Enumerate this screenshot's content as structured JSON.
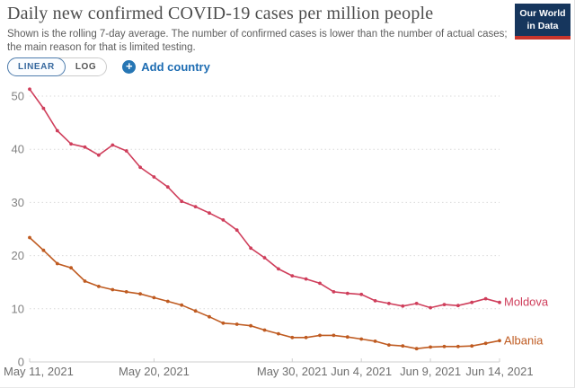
{
  "header": {
    "title": "Daily new confirmed COVID-19 cases per million people",
    "subtitle_line1": "Shown is the rolling 7-day average. The number of confirmed cases is lower than the number of actual cases;",
    "subtitle_line2": "the main reason for that is limited testing.",
    "logo": {
      "line1": "Our World",
      "line2": "in Data"
    }
  },
  "controls": {
    "linear_label": "LINEAR",
    "log_label": "LOG",
    "add_country_label": "Add country",
    "plus_icon": "+"
  },
  "colors": {
    "moldova": "#cf3e5b",
    "albania": "#bf5b21",
    "owid_navy": "#16365d",
    "owid_red": "#c8352c",
    "action_blue": "#1d6cb2",
    "grid": "#d9d9d9",
    "axis": "#cfcfcf",
    "y_label": "#828282",
    "x_label": "#6e6e6e"
  },
  "chart_data": {
    "type": "line",
    "title": "Daily new confirmed COVID-19 cases per million people",
    "xlabel": "",
    "ylabel": "",
    "ylim": [
      0,
      50
    ],
    "y_ticks": [
      0,
      10,
      20,
      30,
      40,
      50
    ],
    "grid": "dotted horizontal",
    "legend_position": "line-end-labels",
    "x_total_days": 34,
    "x_range": [
      "May 11, 2021",
      "Jun 14, 2021"
    ],
    "x_ticks": [
      {
        "label": "May 11, 2021",
        "day": 0
      },
      {
        "label": "May 20, 2021",
        "day": 9
      },
      {
        "label": "May 30, 2021",
        "day": 19
      },
      {
        "label": "Jun 4, 2021",
        "day": 24
      },
      {
        "label": "Jun 9, 2021",
        "day": 29
      },
      {
        "label": "Jun 14, 2021",
        "day": 34
      }
    ],
    "series": [
      {
        "name": "Moldova",
        "color": "#cf3e5b",
        "values": [
          51.3,
          47.7,
          43.5,
          41.0,
          40.4,
          38.9,
          40.8,
          39.7,
          36.6,
          34.8,
          32.9,
          30.2,
          29.2,
          28.0,
          26.7,
          24.8,
          21.4,
          19.6,
          17.5,
          16.2,
          15.6,
          14.8,
          13.2,
          12.9,
          12.7,
          11.5,
          11.0,
          10.5,
          11.0,
          10.2,
          10.8,
          10.6,
          11.2,
          11.9,
          11.2
        ]
      },
      {
        "name": "Albania",
        "color": "#bf5b21",
        "values": [
          23.4,
          21.0,
          18.5,
          17.7,
          15.2,
          14.2,
          13.6,
          13.2,
          12.8,
          12.1,
          11.4,
          10.7,
          9.6,
          8.5,
          7.3,
          7.1,
          6.8,
          6.0,
          5.3,
          4.6,
          4.6,
          5.0,
          5.0,
          4.7,
          4.3,
          3.9,
          3.2,
          3.0,
          2.5,
          2.8,
          2.9,
          2.9,
          3.0,
          3.5,
          4.0
        ]
      }
    ]
  }
}
